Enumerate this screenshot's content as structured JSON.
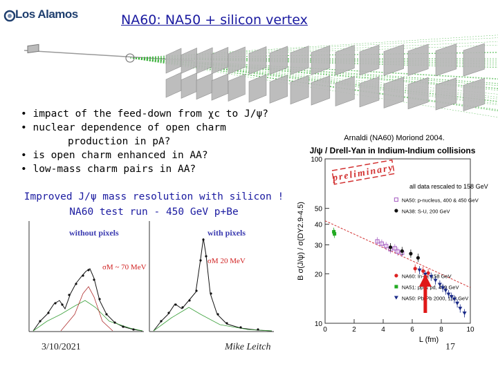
{
  "header": {
    "logo_text": "Los Alamos",
    "title": "NA60: NA50 + silicon vertex"
  },
  "bullets": [
    "• impact of the feed-down from χc to J/ψ?",
    "• nuclear dependence of open charm",
    "production in pA?",
    "• is open charm enhanced in AA?",
    "• low-mass charm pairs in AA?"
  ],
  "improved": {
    "line1": "Improved J/ψ mass resolution with silicon !",
    "line2": "NA60 test run - 450 GeV p+Be"
  },
  "left_panels": {
    "left_title": "without pixels",
    "left_sigma": "σM ~ 70 MeV",
    "right_title": "with pixels",
    "right_sigma": "σM  20 MeV"
  },
  "footer": {
    "date": "3/10/2021",
    "author": "Mike Leitch",
    "page": "17"
  },
  "right_header": {
    "citation": "Arnaldi (NA60) Moriond 2004.",
    "plot_title": "J/ψ / Drell-Yan in Indium-Indium collisions"
  },
  "chart_data": {
    "type": "scatter",
    "xlabel": "L (fm)",
    "ylabel": "B σ(J/ψ) / σ(DY2.9-4.5)",
    "xlim": [
      0,
      10
    ],
    "ylim": [
      10,
      100
    ],
    "y_log_scale": true,
    "xticks": [
      "0",
      "2",
      "4",
      "6",
      "8",
      "10"
    ],
    "yticks": [
      "100",
      "50",
      "40",
      "30",
      "20",
      "10"
    ],
    "annotations": [
      "preliminary",
      "all data rescaled to 158 GeV"
    ],
    "legend_top": [
      "NA50: p-nucleus, 400 & 450 GeV",
      "NA38: S-U, 200 GeV"
    ],
    "legend_bottom": [
      "NA60: In-In, 158 GeV",
      "NA51: pp & pd, 450 GeV",
      "NA50: Pb-Pb 2000, 158 GeV"
    ],
    "colors": {
      "na60": "#dd2222",
      "na51": "#22aa22",
      "na50_pa": "#b070c8",
      "na38": "#111111",
      "na50_pbpb": "#1a2a88",
      "fit": "#d23030",
      "arrow": "#e01818"
    },
    "series": [
      {
        "name": "NA51: pp & pd, 450 GeV",
        "x": [
          0.6,
          0.65
        ],
        "y": [
          36,
          35
        ]
      },
      {
        "name": "NA50: p-nucleus, 400 & 450 GeV",
        "x": [
          3.6,
          3.9,
          4.2,
          4.5,
          4.8,
          5.0,
          5.3
        ],
        "y": [
          31.5,
          30.5,
          29.5,
          28.2,
          28.6,
          27.3,
          26.8
        ]
      },
      {
        "name": "NA38: S-U, 200 GeV",
        "x": [
          4.5,
          5.3,
          5.9,
          6.4
        ],
        "y": [
          29,
          27.5,
          26.5,
          25
        ]
      },
      {
        "name": "NA60: In-In, 158 GeV",
        "x": [
          6.2,
          6.75,
          6.9,
          7.1
        ],
        "y": [
          21.5,
          20.8,
          19.2,
          20.2
        ]
      },
      {
        "name": "NA50: Pb-Pb 2000, 158 GeV",
        "x": [
          6.5,
          6.9,
          7.3,
          7.6,
          7.9,
          8.1,
          8.3,
          8.5,
          8.7,
          8.9,
          9.1,
          9.3,
          9.6
        ],
        "y": [
          21,
          19.8,
          19.2,
          18.2,
          17.2,
          16.4,
          15.8,
          15,
          14.5,
          14,
          13.2,
          12.3,
          11.5
        ]
      }
    ],
    "fit_line": {
      "x": [
        0,
        10
      ],
      "y": [
        42,
        16.5
      ]
    },
    "arrow_at_x": 6.9
  }
}
